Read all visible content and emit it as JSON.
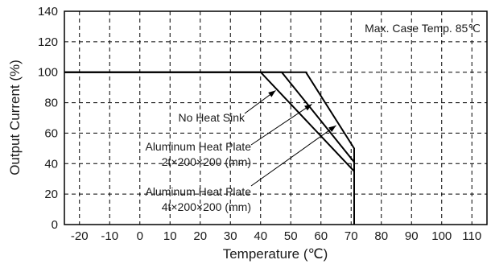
{
  "chart_data": {
    "type": "line",
    "xlabel": "Temperature (℃)",
    "ylabel": "Output Current (%)",
    "xlim": [
      -25,
      115
    ],
    "ylim": [
      0,
      140
    ],
    "x_ticks": [
      -20,
      -10,
      0,
      10,
      20,
      30,
      40,
      50,
      60,
      70,
      80,
      90,
      100,
      110
    ],
    "y_ticks": [
      0,
      20,
      40,
      60,
      80,
      100,
      120,
      140
    ],
    "grid": true,
    "series": [
      {
        "name": "No Heat Sink",
        "x": [
          -25,
          40,
          71,
          71
        ],
        "y": [
          100,
          100,
          35,
          0
        ]
      },
      {
        "name": "Aluminum Heat Plate 2t×200×200 (mm)",
        "x": [
          -25,
          47,
          71,
          71
        ],
        "y": [
          100,
          100,
          41,
          0
        ]
      },
      {
        "name": "Aluminum Heat Plate 4t×200×200 (mm)",
        "x": [
          -25,
          55,
          71,
          71
        ],
        "y": [
          100,
          100,
          50,
          0
        ]
      }
    ],
    "annotations": [
      {
        "text": "Max. Case Temp. 85℃"
      },
      {
        "text_lines": [
          "No Heat Sink"
        ],
        "points_to_series": 0,
        "arrow_tip": [
          45,
          88
        ]
      },
      {
        "text_lines": [
          "Aluminum Heat Plate",
          "2t×200×200 (mm)"
        ],
        "points_to_series": 1,
        "arrow_tip": [
          57,
          79
        ]
      },
      {
        "text_lines": [
          "Aluminum Heat Plate",
          "4t×200×200 (mm)"
        ],
        "points_to_series": 2,
        "arrow_tip": [
          65,
          65
        ]
      }
    ]
  }
}
